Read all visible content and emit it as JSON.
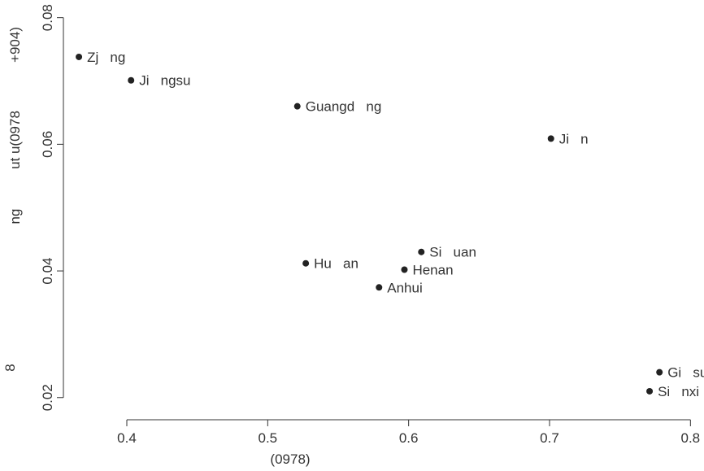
{
  "chart_data": {
    "type": "scatter",
    "xlabel": "(0978)",
    "ylabel_parts": [
      "+904)",
      "ut u(0978",
      "ng"
    ],
    "ylabel_stray": "8",
    "xlim": [
      0.355,
      0.805
    ],
    "ylim": [
      0.0165,
      0.0815
    ],
    "x_ticks": [
      0.4,
      0.5,
      0.6,
      0.7,
      0.8
    ],
    "x_tick_labels": [
      "0.4",
      "0.5",
      "0.6",
      "0.7",
      "0.8"
    ],
    "y_ticks": [
      0.02,
      0.04,
      0.06,
      0.08
    ],
    "y_tick_labels": [
      "0.02",
      "0.04",
      "0.06",
      "0.08"
    ],
    "grid": false,
    "points": [
      {
        "label": "Zj   ng",
        "x": 0.366,
        "y": 0.0738
      },
      {
        "label": "Ji   ngsu",
        "x": 0.403,
        "y": 0.0701
      },
      {
        "label": "Guangd   ng",
        "x": 0.521,
        "y": 0.066
      },
      {
        "label": "Ji   n",
        "x": 0.701,
        "y": 0.0609
      },
      {
        "label": "Si   uan",
        "x": 0.609,
        "y": 0.043
      },
      {
        "label": "Hu   an",
        "x": 0.527,
        "y": 0.0412
      },
      {
        "label": "Henan",
        "x": 0.597,
        "y": 0.0402
      },
      {
        "label": "Anhui",
        "x": 0.579,
        "y": 0.0374
      },
      {
        "label": "Gi   su",
        "x": 0.778,
        "y": 0.024
      },
      {
        "label": "Si   nxi",
        "x": 0.771,
        "y": 0.021
      }
    ]
  }
}
